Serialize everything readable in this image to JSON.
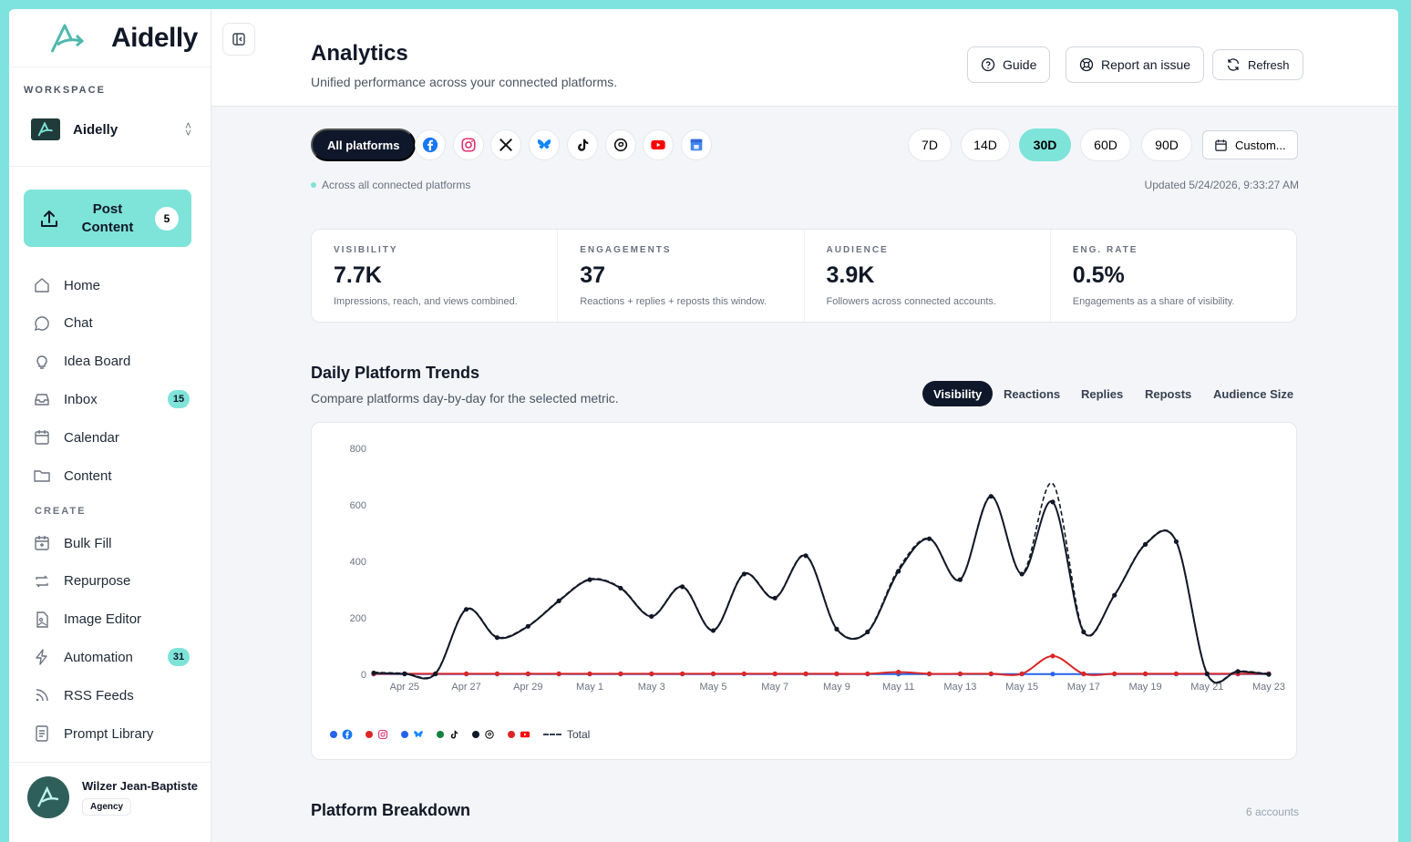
{
  "brand": {
    "name": "Aidelly"
  },
  "workspace": {
    "label": "WORKSPACE",
    "name": "Aidelly"
  },
  "post_button": {
    "label_line1": "Post",
    "label_line2": "Content",
    "count": "5"
  },
  "nav": [
    {
      "label": "Home",
      "icon": "home-icon",
      "badge": ""
    },
    {
      "label": "Chat",
      "icon": "chat-icon",
      "badge": ""
    },
    {
      "label": "Idea Board",
      "icon": "lightbulb-icon",
      "badge": ""
    },
    {
      "label": "Inbox",
      "icon": "inbox-icon",
      "badge": "15"
    },
    {
      "label": "Calendar",
      "icon": "calendar-icon",
      "badge": ""
    },
    {
      "label": "Content",
      "icon": "folder-icon",
      "badge": ""
    }
  ],
  "create_label": "CREATE",
  "create_nav": [
    {
      "label": "Bulk Fill",
      "icon": "bulk-fill-icon",
      "badge": ""
    },
    {
      "label": "Repurpose",
      "icon": "repeat-icon",
      "badge": ""
    },
    {
      "label": "Image Editor",
      "icon": "image-editor-icon",
      "badge": ""
    },
    {
      "label": "Automation",
      "icon": "bolt-icon",
      "badge": "31"
    },
    {
      "label": "RSS Feeds",
      "icon": "rss-icon",
      "badge": ""
    },
    {
      "label": "Prompt Library",
      "icon": "document-icon",
      "badge": ""
    }
  ],
  "user": {
    "name": "Wilzer Jean-Baptiste",
    "plan": "Agency"
  },
  "header": {
    "title": "Analytics",
    "subtitle": "Unified performance across your connected platforms.",
    "guide_label": "Guide",
    "report_label": "Report an issue",
    "refresh_label": "Refresh"
  },
  "filters": {
    "all_label": "All platforms",
    "platforms": [
      "facebook-icon",
      "instagram-icon",
      "x-icon",
      "bluesky-icon",
      "tiktok-icon",
      "threads-icon",
      "youtube-icon",
      "google-business-icon"
    ],
    "ranges": [
      "7D",
      "14D",
      "30D",
      "60D",
      "90D"
    ],
    "active_range": "30D",
    "custom_label": "Custom...",
    "scope_text": "Across all connected platforms",
    "updated_text": "Updated 5/24/2026, 9:33:27 AM"
  },
  "stats": [
    {
      "label": "VISIBILITY",
      "value": "7.7K",
      "desc": "Impressions, reach, and views combined."
    },
    {
      "label": "ENGAGEMENTS",
      "value": "37",
      "desc": "Reactions + replies + reposts this window."
    },
    {
      "label": "AUDIENCE",
      "value": "3.9K",
      "desc": "Followers across connected accounts."
    },
    {
      "label": "ENG. RATE",
      "value": "0.5%",
      "desc": "Engagements as a share of visibility."
    }
  ],
  "trends": {
    "title": "Daily Platform Trends",
    "subtitle": "Compare platforms day-by-day for the selected metric.",
    "tabs": [
      "Visibility",
      "Reactions",
      "Replies",
      "Reposts",
      "Audience Size"
    ],
    "active_tab": "Visibility"
  },
  "chart_data": {
    "type": "line",
    "x": [
      "Apr 24",
      "Apr 25",
      "Apr 26",
      "Apr 27",
      "Apr 28",
      "Apr 29",
      "Apr 30",
      "May 1",
      "May 2",
      "May 3",
      "May 4",
      "May 5",
      "May 6",
      "May 7",
      "May 8",
      "May 9",
      "May 10",
      "May 11",
      "May 12",
      "May 13",
      "May 14",
      "May 15",
      "May 16",
      "May 17",
      "May 18",
      "May 19",
      "May 20",
      "May 21",
      "May 22",
      "May 23"
    ],
    "x_tick_labels": [
      "Apr 25",
      "Apr 27",
      "Apr 29",
      "May 1",
      "May 3",
      "May 5",
      "May 7",
      "May 9",
      "May 11",
      "May 13",
      "May 15",
      "May 17",
      "May 19",
      "May 21",
      "May 23"
    ],
    "yticks": [
      0,
      200,
      400,
      600,
      800
    ],
    "ylim": [
      0,
      800
    ],
    "series": [
      {
        "color": "#111827",
        "values": [
          5,
          2,
          2,
          230,
          130,
          170,
          260,
          335,
          305,
          205,
          310,
          155,
          355,
          270,
          420,
          160,
          150,
          365,
          480,
          335,
          630,
          355,
          610,
          150,
          280,
          460,
          470,
          2,
          10,
          0
        ]
      },
      {
        "color": "#dc2626",
        "values": [
          2,
          2,
          2,
          2,
          2,
          2,
          2,
          2,
          2,
          2,
          2,
          2,
          2,
          2,
          2,
          2,
          2,
          8,
          2,
          2,
          2,
          2,
          65,
          2,
          2,
          2,
          2,
          2,
          2,
          2
        ]
      },
      {
        "color": "#2563eb",
        "values": [
          1,
          1,
          1,
          1,
          1,
          1,
          1,
          1,
          1,
          1,
          1,
          1,
          1,
          1,
          1,
          1,
          1,
          1,
          1,
          1,
          1,
          1,
          1,
          1,
          1,
          1,
          1,
          1,
          1,
          1
        ]
      },
      {
        "name": "Total",
        "color": "#111827",
        "dashed": true,
        "values": [
          7,
          4,
          4,
          232,
          132,
          172,
          262,
          337,
          307,
          207,
          312,
          157,
          357,
          272,
          422,
          162,
          152,
          373,
          482,
          337,
          632,
          357,
          675,
          152,
          282,
          462,
          472,
          4,
          12,
          2
        ]
      }
    ],
    "legend": [
      {
        "dot": "#2563eb",
        "icon": "facebook-icon"
      },
      {
        "dot": "#dc2626",
        "icon": "instagram-icon"
      },
      {
        "dot": "#2563eb",
        "icon": "bluesky-icon"
      },
      {
        "dot": "#15803d",
        "icon": "tiktok-icon"
      },
      {
        "dot": "#111827",
        "icon": "threads-icon"
      },
      {
        "dot": "#dc2626",
        "icon": "youtube-icon"
      }
    ],
    "legend_total_label": "Total"
  },
  "breakdown": {
    "title": "Platform Breakdown",
    "count": "6 accounts"
  }
}
